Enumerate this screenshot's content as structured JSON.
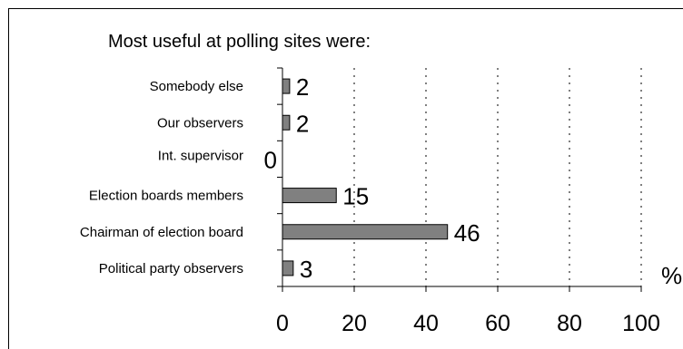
{
  "chart_data": {
    "type": "bar",
    "orientation": "horizontal",
    "title": "Most useful at polling sites were:",
    "categories": [
      "Somebody else",
      "Our observers",
      "Int. supervisor",
      "Election boards members",
      "Chairman of election board",
      "Political party observers"
    ],
    "values": [
      2,
      2,
      0,
      15,
      46,
      3
    ],
    "data_labels": [
      "2",
      "2",
      "0",
      "15",
      "46",
      "3"
    ],
    "xlim": [
      0,
      100
    ],
    "x_ticks": [
      "0",
      "20",
      "40",
      "60",
      "80",
      "100"
    ],
    "x_unit": "%",
    "grid": "vertical dotted",
    "bar_color": "#808080",
    "legend": "none"
  }
}
